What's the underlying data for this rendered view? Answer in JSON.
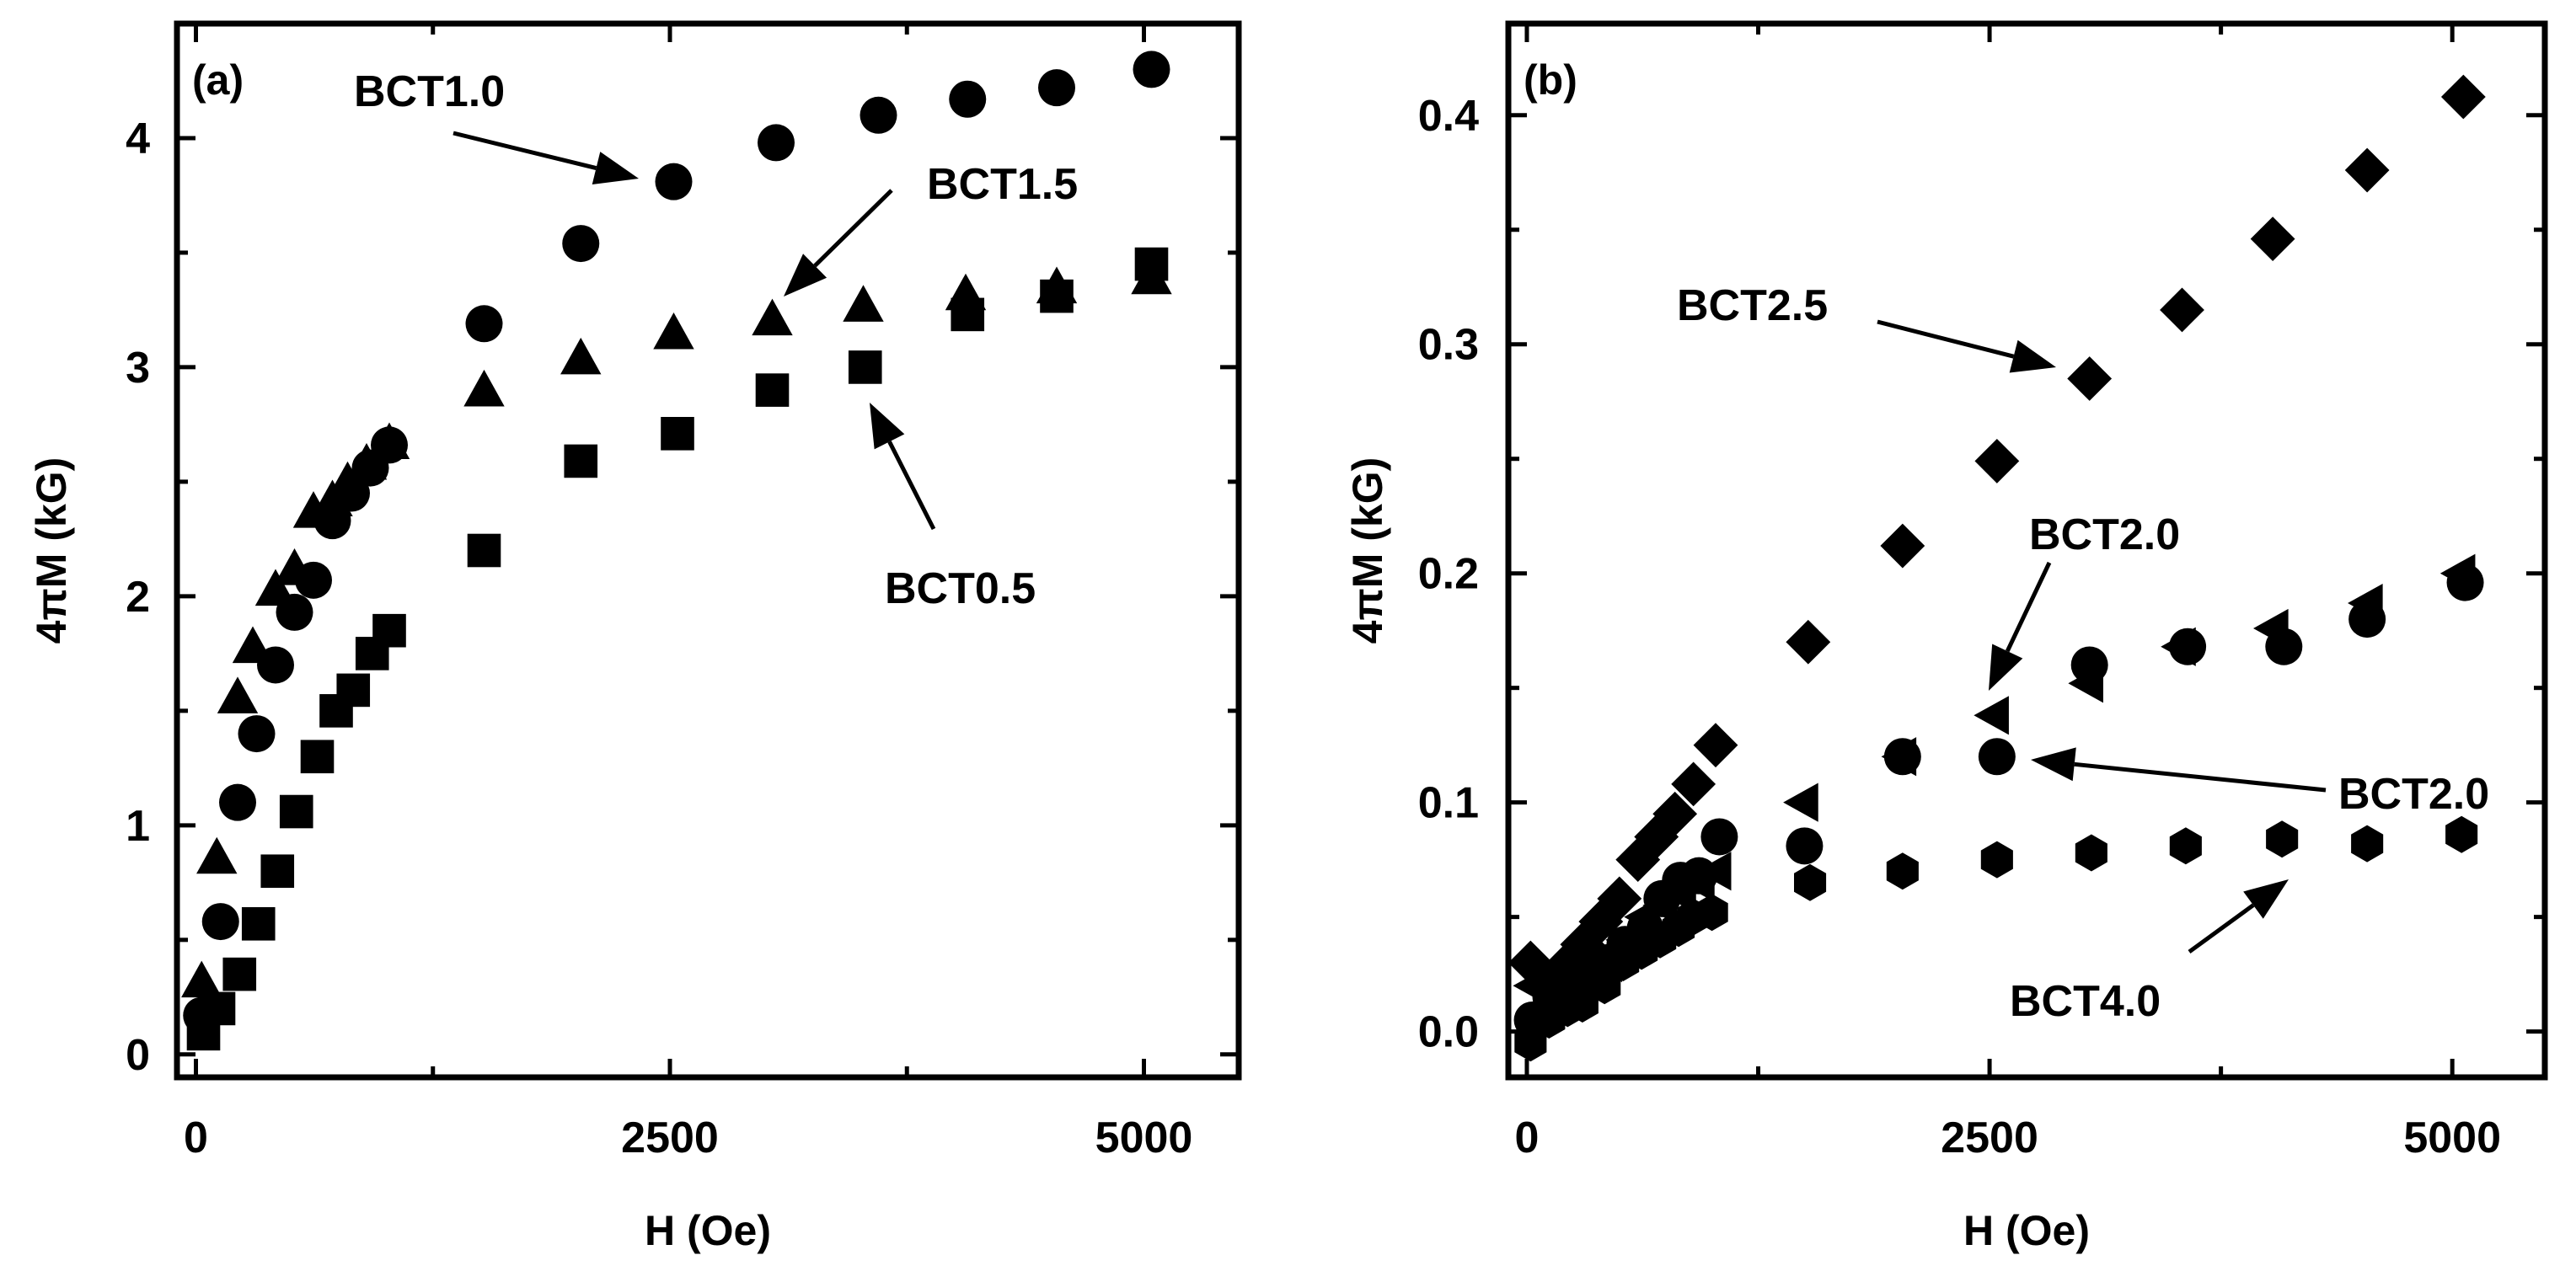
{
  "chart_data": [
    {
      "type": "scatter",
      "panel_label": "(a)",
      "xlabel": "H (Oe)",
      "ylabel": "4πM (kG)",
      "xlim": [
        -100,
        5500
      ],
      "ylim": [
        -0.1,
        4.5
      ],
      "xticks": [
        0,
        2500,
        5000
      ],
      "yticks": [
        0,
        1,
        2,
        3,
        4
      ],
      "series": [
        {
          "name": "BCT1.0",
          "marker": "circle",
          "x": [
            30,
            130,
            220,
            320,
            420,
            520,
            620,
            720,
            820,
            920,
            1020,
            1520,
            2030,
            2520,
            3060,
            3600,
            4070,
            4540,
            5040
          ],
          "y": [
            0.17,
            0.58,
            1.1,
            1.4,
            1.7,
            1.93,
            2.07,
            2.33,
            2.45,
            2.56,
            2.66,
            3.19,
            3.54,
            3.81,
            3.98,
            4.1,
            4.17,
            4.22,
            4.3
          ]
        },
        {
          "name": "BCT1.5",
          "marker": "triangle",
          "x": [
            30,
            110,
            220,
            300,
            420,
            520,
            620,
            720,
            800,
            900,
            1020,
            1520,
            2030,
            2520,
            3040,
            3520,
            4060,
            4540,
            5040
          ],
          "y": [
            0.32,
            0.86,
            1.56,
            1.78,
            2.03,
            2.12,
            2.37,
            2.42,
            2.5,
            2.58,
            2.67,
            2.9,
            3.04,
            3.15,
            3.21,
            3.27,
            3.32,
            3.35,
            3.39
          ]
        },
        {
          "name": "BCT0.5",
          "marker": "square",
          "x": [
            40,
            120,
            230,
            330,
            430,
            530,
            640,
            740,
            830,
            930,
            1020,
            1520,
            2030,
            2540,
            3040,
            3530,
            4070,
            4540,
            5040
          ],
          "y": [
            0.09,
            0.2,
            0.35,
            0.57,
            0.8,
            1.06,
            1.3,
            1.5,
            1.59,
            1.75,
            1.85,
            2.2,
            2.59,
            2.71,
            2.9,
            3.0,
            3.23,
            3.31,
            3.45
          ]
        }
      ],
      "annotations": [
        {
          "text": "BCT1.0",
          "points_to": "BCT1.0"
        },
        {
          "text": "BCT1.5",
          "points_to": "BCT1.5"
        },
        {
          "text": "BCT0.5",
          "points_to": "BCT0.5"
        }
      ]
    },
    {
      "type": "scatter",
      "panel_label": "(b)",
      "xlabel": "H (Oe)",
      "ylabel": "4πM (kG)",
      "xlim": [
        -100,
        5500
      ],
      "ylim": [
        -0.02,
        0.44
      ],
      "xticks": [
        0,
        2500,
        5000
      ],
      "yticks": [
        0.0,
        0.1,
        0.2,
        0.3,
        0.4
      ],
      "yticklabels": [
        "0.0",
        "0.1",
        "0.2",
        "0.3",
        "0.4"
      ],
      "series": [
        {
          "name": "BCT2.5",
          "marker": "diamond",
          "x": [
            20,
            100,
            200,
            300,
            400,
            500,
            600,
            700,
            800,
            900,
            1020,
            1520,
            2030,
            2540,
            3040,
            3540,
            4030,
            4540,
            5060
          ],
          "y": [
            0.03,
            0.022,
            0.028,
            0.038,
            0.048,
            0.058,
            0.075,
            0.085,
            0.095,
            0.108,
            0.125,
            0.17,
            0.212,
            0.249,
            0.285,
            0.315,
            0.346,
            0.376,
            0.408
          ]
        },
        {
          "name": "BCT2.0 (triangle)",
          "marker": "triangle-left",
          "x": [
            30,
            120,
            220,
            330,
            430,
            530,
            630,
            730,
            830,
            930,
            1020,
            1490,
            2020,
            2520,
            3030,
            3530,
            4030,
            4540,
            5040
          ],
          "y": [
            0.02,
            0.018,
            0.022,
            0.025,
            0.03,
            0.04,
            0.05,
            0.055,
            0.06,
            0.065,
            0.07,
            0.1,
            0.12,
            0.138,
            0.152,
            0.168,
            0.176,
            0.187,
            0.2
          ]
        },
        {
          "name": "BCT2.0 (circle)",
          "marker": "circle",
          "x": [
            30,
            130,
            230,
            330,
            430,
            530,
            640,
            730,
            830,
            930,
            1040,
            1500,
            2030,
            2540,
            3040,
            3570,
            4090,
            4540,
            5070
          ],
          "y": [
            0.005,
            0.015,
            0.02,
            0.025,
            0.03,
            0.038,
            0.045,
            0.058,
            0.066,
            0.068,
            0.085,
            0.081,
            0.12,
            0.12,
            0.16,
            0.168,
            0.168,
            0.18,
            0.196
          ]
        },
        {
          "name": "BCT4.0",
          "marker": "hexagon",
          "x": [
            20,
            120,
            220,
            300,
            420,
            520,
            620,
            720,
            820,
            900,
            1000,
            1530,
            2030,
            2540,
            3050,
            3560,
            4080,
            4540,
            5050
          ],
          "y": [
            -0.005,
            0.005,
            0.01,
            0.012,
            0.02,
            0.03,
            0.035,
            0.04,
            0.045,
            0.05,
            0.052,
            0.065,
            0.07,
            0.075,
            0.078,
            0.081,
            0.084,
            0.082,
            0.086
          ]
        }
      ],
      "annotations": [
        {
          "text": "BCT2.5",
          "points_to": "BCT2.5"
        },
        {
          "text": "BCT2.0",
          "points_to": "BCT2.0 (triangle)"
        },
        {
          "text": "BCT2.0",
          "points_to": "BCT2.0 (circle)"
        },
        {
          "text": "BCT4.0",
          "points_to": "BCT4.0"
        }
      ]
    }
  ]
}
